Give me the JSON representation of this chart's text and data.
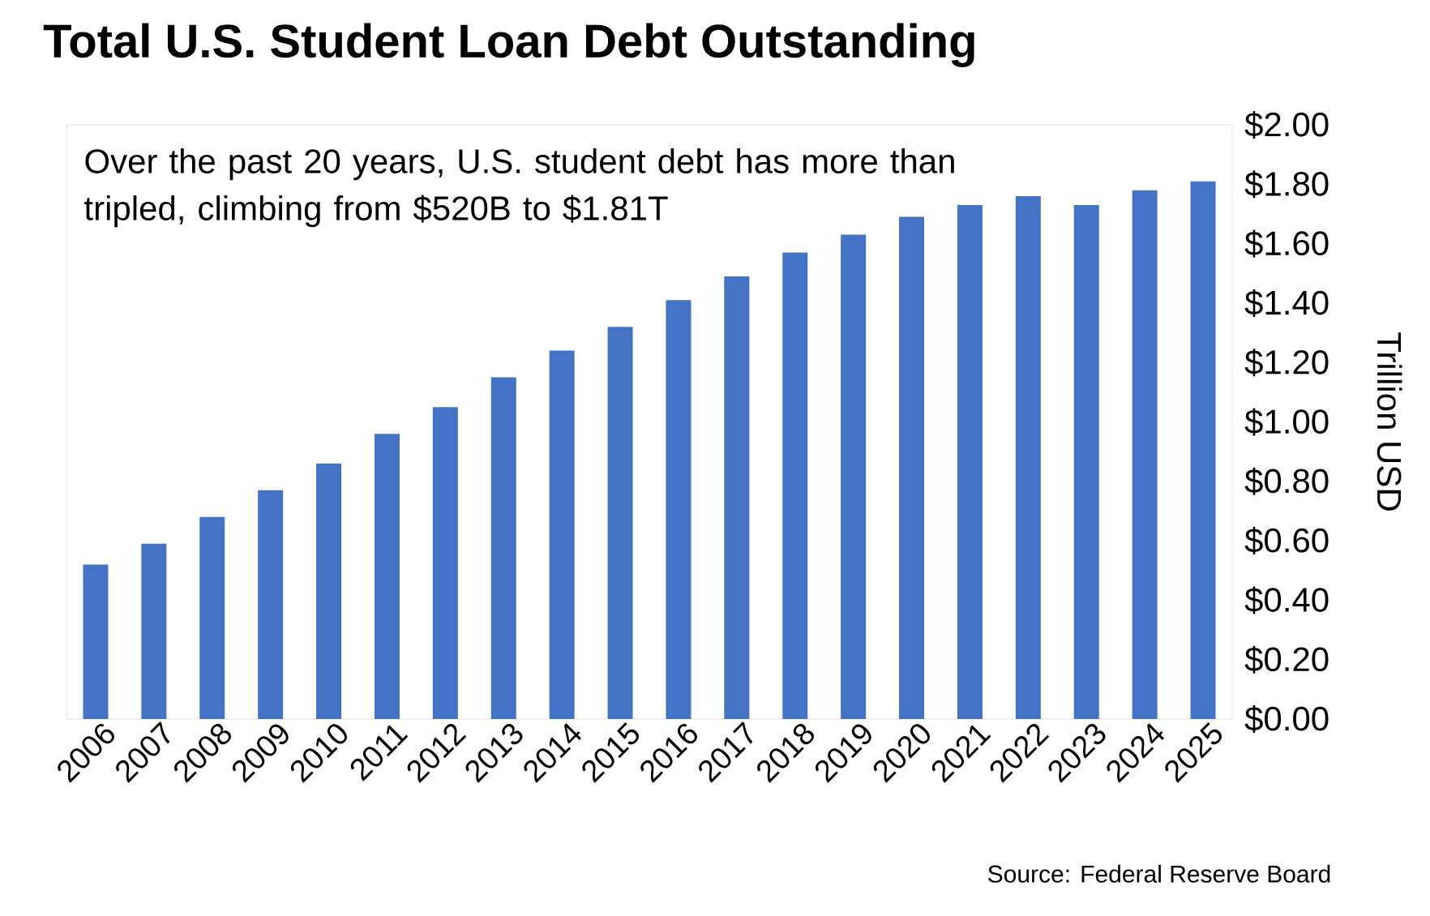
{
  "chart_data": {
    "type": "bar",
    "title": "Total U.S. Student Loan Debt Outstanding",
    "ylabel": "Trillion USD",
    "categories": [
      "2006",
      "2007",
      "2008",
      "2009",
      "2010",
      "2011",
      "2012",
      "2013",
      "2014",
      "2015",
      "2016",
      "2017",
      "2018",
      "2019",
      "2020",
      "2021",
      "2022",
      "2023",
      "2024",
      "2025"
    ],
    "values": [
      0.52,
      0.59,
      0.68,
      0.77,
      0.86,
      0.96,
      1.05,
      1.15,
      1.24,
      1.32,
      1.41,
      1.49,
      1.57,
      1.63,
      1.69,
      1.73,
      1.76,
      1.73,
      1.78,
      1.81
    ],
    "color": "#4472c4",
    "ylim": [
      0,
      2
    ],
    "yticks": [
      {
        "value": 0,
        "label": "$0.00"
      },
      {
        "value": 0.2,
        "label": "$0.20"
      },
      {
        "value": 0.4,
        "label": "$0.40"
      },
      {
        "value": 0.6,
        "label": "$0.60"
      },
      {
        "value": 0.8,
        "label": "$0.80"
      },
      {
        "value": 1.0,
        "label": "$1.00"
      },
      {
        "value": 1.2,
        "label": "$1.20"
      },
      {
        "value": 1.4,
        "label": "$1.40"
      },
      {
        "value": 1.6,
        "label": "$1.60"
      },
      {
        "value": 1.8,
        "label": "$1.80"
      },
      {
        "value": 2.0,
        "label": "$2.00"
      }
    ],
    "annotations": [
      "Over the past 20 years, U.S. student debt has more than tripled, climbing from $520B to $1.81T",
      "Source: Federal Reserve Board"
    ]
  }
}
